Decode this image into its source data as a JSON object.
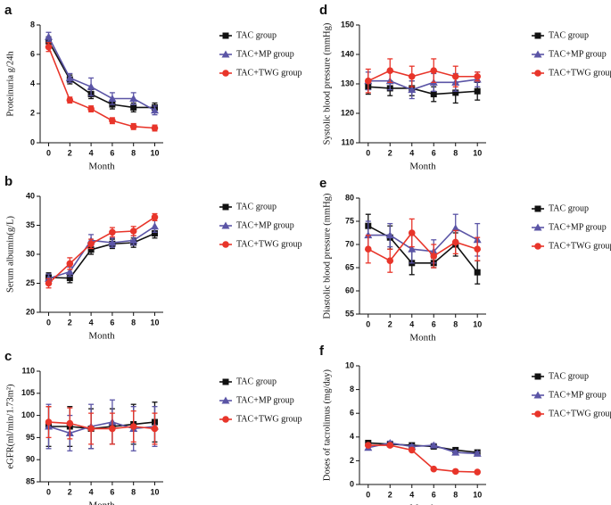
{
  "chart_data": [
    {
      "type": "line",
      "panel": "a",
      "ylabel": "Proteinuria g/24h",
      "xlabel": "Month",
      "x": [
        0,
        2,
        4,
        6,
        8,
        10
      ],
      "xlim": [
        -0.8,
        10.8
      ],
      "xticks": [
        0,
        2,
        4,
        6,
        8,
        10
      ],
      "ylim": [
        0,
        8
      ],
      "yticks": [
        0,
        2,
        4,
        6,
        8
      ],
      "series": [
        {
          "name": "TAC group",
          "color": "#111111",
          "marker": "square",
          "values": [
            6.9,
            4.3,
            3.3,
            2.6,
            2.4,
            2.4
          ],
          "errors": [
            0.3,
            0.3,
            0.3,
            0.3,
            0.3,
            0.3
          ]
        },
        {
          "name": "TAC+MP group",
          "color": "#5b55a6",
          "marker": "triangle",
          "values": [
            7.2,
            4.4,
            3.8,
            3.0,
            3.0,
            2.2
          ],
          "errors": [
            0.3,
            0.3,
            0.6,
            0.4,
            0.4,
            0.3
          ]
        },
        {
          "name": "TAC+TWG group",
          "color": "#e8352a",
          "marker": "circle",
          "values": [
            6.5,
            2.9,
            2.3,
            1.5,
            1.1,
            1.0
          ],
          "errors": [
            0.3,
            0.2,
            0.2,
            0.2,
            0.2,
            0.2
          ]
        }
      ]
    },
    {
      "type": "line",
      "panel": "b",
      "ylabel": "Serum albumin(g/L)",
      "xlabel": "Month",
      "x": [
        0,
        2,
        4,
        6,
        8,
        10
      ],
      "xlim": [
        -0.8,
        10.8
      ],
      "xticks": [
        0,
        2,
        4,
        6,
        8,
        10
      ],
      "ylim": [
        20,
        40
      ],
      "yticks": [
        20,
        25,
        30,
        35,
        40
      ],
      "series": [
        {
          "name": "TAC group",
          "color": "#111111",
          "marker": "square",
          "values": [
            26.0,
            25.9,
            30.8,
            31.8,
            32.0,
            33.6
          ],
          "errors": [
            0.8,
            0.8,
            0.8,
            0.8,
            0.8,
            0.8
          ]
        },
        {
          "name": "TAC+MP group",
          "color": "#5b55a6",
          "marker": "triangle",
          "values": [
            25.8,
            27.0,
            32.4,
            32.0,
            32.4,
            34.8
          ],
          "errors": [
            0.8,
            0.8,
            1.0,
            0.8,
            0.8,
            1.0
          ]
        },
        {
          "name": "TAC+TWG group",
          "color": "#e8352a",
          "marker": "circle",
          "values": [
            25.0,
            28.4,
            31.8,
            33.8,
            34.0,
            36.4
          ],
          "errors": [
            0.8,
            1.0,
            0.8,
            0.8,
            0.8,
            0.6
          ]
        }
      ]
    },
    {
      "type": "line",
      "panel": "c",
      "ylabel": "eGFR(ml/min/1.73m²)",
      "xlabel": "Month",
      "x": [
        0,
        2,
        4,
        6,
        8,
        10
      ],
      "xlim": [
        -0.8,
        10.8
      ],
      "xticks": [
        0,
        2,
        4,
        6,
        8,
        10
      ],
      "ylim": [
        85,
        110
      ],
      "yticks": [
        85,
        90,
        95,
        100,
        105,
        110
      ],
      "series": [
        {
          "name": "TAC group",
          "color": "#111111",
          "marker": "square",
          "values": [
            97.5,
            97.5,
            97.0,
            97.5,
            98.0,
            98.5
          ],
          "errors": [
            4.5,
            4.5,
            4.5,
            4.0,
            4.5,
            4.5
          ]
        },
        {
          "name": "TAC+MP group",
          "color": "#5b55a6",
          "marker": "triangle",
          "values": [
            97.5,
            96.0,
            97.5,
            98.5,
            97.0,
            97.5
          ],
          "errors": [
            5.0,
            4.0,
            5.0,
            5.0,
            5.0,
            4.5
          ]
        },
        {
          "name": "TAC+TWG group",
          "color": "#e8352a",
          "marker": "circle",
          "values": [
            98.5,
            98.2,
            97.0,
            97.0,
            97.5,
            97.0
          ],
          "errors": [
            3.5,
            3.5,
            3.5,
            3.5,
            3.5,
            3.5
          ]
        }
      ]
    },
    {
      "type": "line",
      "panel": "d",
      "ylabel": "Systolic blood pressure (mmHg)",
      "xlabel": "Month",
      "x": [
        0,
        2,
        4,
        6,
        8,
        10
      ],
      "xlim": [
        -0.8,
        10.8
      ],
      "xticks": [
        0,
        2,
        4,
        6,
        8,
        10
      ],
      "ylim": [
        110,
        150
      ],
      "yticks": [
        110,
        120,
        130,
        140,
        150
      ],
      "series": [
        {
          "name": "TAC group",
          "color": "#111111",
          "marker": "square",
          "values": [
            129.0,
            128.5,
            128.5,
            126.5,
            127.0,
            127.5
          ],
          "errors": [
            2.5,
            2.5,
            2.5,
            2.5,
            3.5,
            3.0
          ]
        },
        {
          "name": "TAC+MP group",
          "color": "#5b55a6",
          "marker": "triangle",
          "values": [
            131.0,
            131.0,
            128.0,
            130.5,
            130.5,
            131.5
          ],
          "errors": [
            3.0,
            3.0,
            3.0,
            3.0,
            3.0,
            2.5
          ]
        },
        {
          "name": "TAC+TWG group",
          "color": "#e8352a",
          "marker": "circle",
          "values": [
            131.0,
            134.5,
            132.5,
            134.5,
            132.5,
            132.5
          ],
          "errors": [
            4.0,
            4.0,
            3.5,
            4.0,
            3.5,
            1.5
          ]
        }
      ]
    },
    {
      "type": "line",
      "panel": "e",
      "ylabel": "Diastolic blood pressure (mmHg)",
      "xlabel": "Month",
      "x": [
        0,
        2,
        4,
        6,
        8,
        10
      ],
      "xlim": [
        -0.8,
        10.8
      ],
      "xticks": [
        0,
        2,
        4,
        6,
        8,
        10
      ],
      "ylim": [
        55,
        80
      ],
      "yticks": [
        55,
        60,
        65,
        70,
        75,
        80
      ],
      "series": [
        {
          "name": "TAC group",
          "color": "#111111",
          "marker": "square",
          "values": [
            74.0,
            71.5,
            66.0,
            66.0,
            70.0,
            64.0
          ],
          "errors": [
            2.5,
            2.5,
            2.5,
            1.0,
            2.5,
            2.5
          ]
        },
        {
          "name": "TAC+MP group",
          "color": "#5b55a6",
          "marker": "triangle",
          "values": [
            72.0,
            72.0,
            69.0,
            68.5,
            73.5,
            71.0
          ],
          "errors": [
            3.0,
            2.5,
            3.0,
            2.5,
            3.0,
            3.5
          ]
        },
        {
          "name": "TAC+TWG group",
          "color": "#e8352a",
          "marker": "circle",
          "values": [
            69.0,
            66.5,
            72.5,
            67.5,
            70.5,
            69.0
          ],
          "errors": [
            3.0,
            2.5,
            3.0,
            2.5,
            2.5,
            2.5
          ]
        }
      ]
    },
    {
      "type": "line",
      "panel": "f",
      "ylabel": "Doses of tacrolimus (mg/day)",
      "xlabel": "Month",
      "x": [
        0,
        2,
        4,
        6,
        8,
        10
      ],
      "xlim": [
        -0.8,
        10.8
      ],
      "xticks": [
        0,
        2,
        4,
        6,
        8,
        10
      ],
      "ylim": [
        0,
        10
      ],
      "yticks": [
        0,
        2,
        4,
        6,
        8,
        10
      ],
      "series": [
        {
          "name": "TAC group",
          "color": "#111111",
          "marker": "square",
          "values": [
            3.5,
            3.4,
            3.3,
            3.2,
            2.9,
            2.7
          ],
          "errors": [
            0.15,
            0.15,
            0.15,
            0.15,
            0.15,
            0.15
          ]
        },
        {
          "name": "TAC+MP group",
          "color": "#5b55a6",
          "marker": "triangle",
          "values": [
            3.1,
            3.5,
            3.2,
            3.3,
            2.7,
            2.6
          ],
          "errors": [
            0.15,
            0.15,
            0.15,
            0.15,
            0.15,
            0.15
          ]
        },
        {
          "name": "TAC+TWG group",
          "color": "#e8352a",
          "marker": "circle",
          "values": [
            3.3,
            3.3,
            2.9,
            1.3,
            1.1,
            1.05
          ],
          "errors": [
            0.1,
            0.1,
            0.1,
            0.1,
            0.1,
            0.1
          ]
        }
      ]
    }
  ]
}
